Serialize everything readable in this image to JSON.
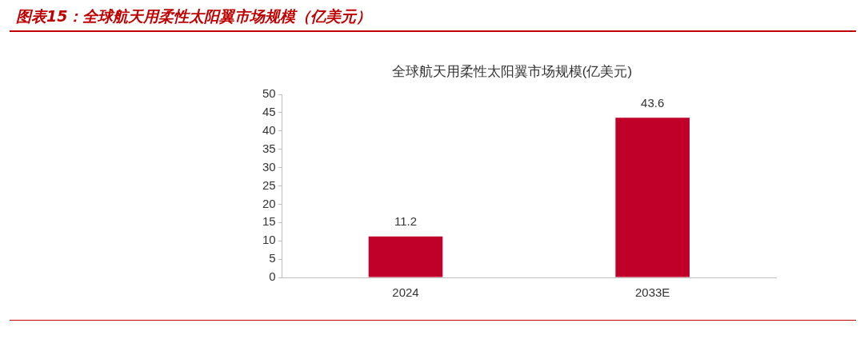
{
  "chart_data": {
    "type": "bar",
    "title": "图表15：全球航天用柔性太阳翼市场规模（亿美元）",
    "subtitle": "全球航天用柔性太阳翼市场规模(亿美元)",
    "categories": [
      "2024",
      "2033E"
    ],
    "values": [
      11.2,
      43.6
    ],
    "color": "#c00028",
    "ylim": [
      0,
      50
    ],
    "yticks": [
      0,
      5,
      10,
      15,
      20,
      25,
      30,
      35,
      40,
      45,
      50
    ],
    "data_labels": true,
    "grid": false,
    "legend": false
  }
}
